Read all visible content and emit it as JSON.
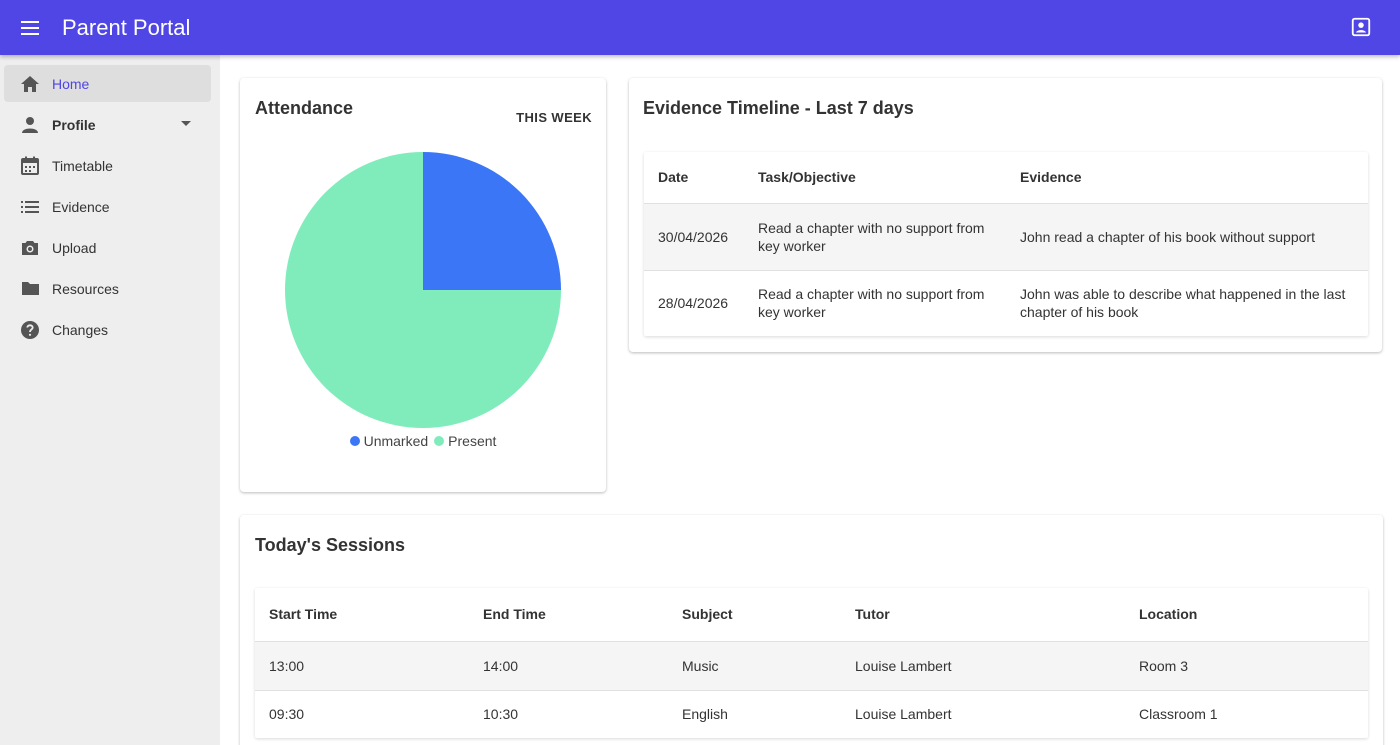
{
  "header": {
    "title": "Parent Portal"
  },
  "sidebar": {
    "items": [
      {
        "label": "Home",
        "icon": "home-icon"
      },
      {
        "label": "Profile",
        "icon": "person-icon"
      },
      {
        "label": "Timetable",
        "icon": "calendar-icon"
      },
      {
        "label": "Evidence",
        "icon": "list-icon"
      },
      {
        "label": "Upload",
        "icon": "camera-icon"
      },
      {
        "label": "Resources",
        "icon": "folder-icon"
      },
      {
        "label": "Changes",
        "icon": "help-icon"
      }
    ]
  },
  "attendance": {
    "title": "Attendance",
    "period_button": "THIS WEEK",
    "legend": [
      {
        "label": "Unmarked",
        "color": "#3b76f6"
      },
      {
        "label": "Present",
        "color": "#80ecbb"
      }
    ]
  },
  "chart_data": {
    "type": "pie",
    "categories": [
      "Unmarked",
      "Present"
    ],
    "values": [
      25,
      75
    ],
    "colors": [
      "#3b76f6",
      "#80ecbb"
    ],
    "legend_position": "bottom"
  },
  "evidence": {
    "title": "Evidence Timeline - Last 7 days",
    "columns": [
      "Date",
      "Task/Objective",
      "Evidence"
    ],
    "rows": [
      {
        "date": "30/04/2026",
        "task": "Read a chapter with no support from key worker",
        "evidence": "John read a chapter of his book without support"
      },
      {
        "date": "28/04/2026",
        "task": "Read a chapter with no support from key worker",
        "evidence": "John was able to describe what happened in the last chapter of his book"
      }
    ]
  },
  "sessions": {
    "title": "Today's Sessions",
    "columns": [
      "Start Time",
      "End Time",
      "Subject",
      "Tutor",
      "Location"
    ],
    "rows": [
      {
        "start": "13:00",
        "end": "14:00",
        "subject": "Music",
        "tutor": "Louise Lambert",
        "location": "Room 3"
      },
      {
        "start": "09:30",
        "end": "10:30",
        "subject": "English",
        "tutor": "Louise Lambert",
        "location": "Classroom 1"
      }
    ]
  }
}
